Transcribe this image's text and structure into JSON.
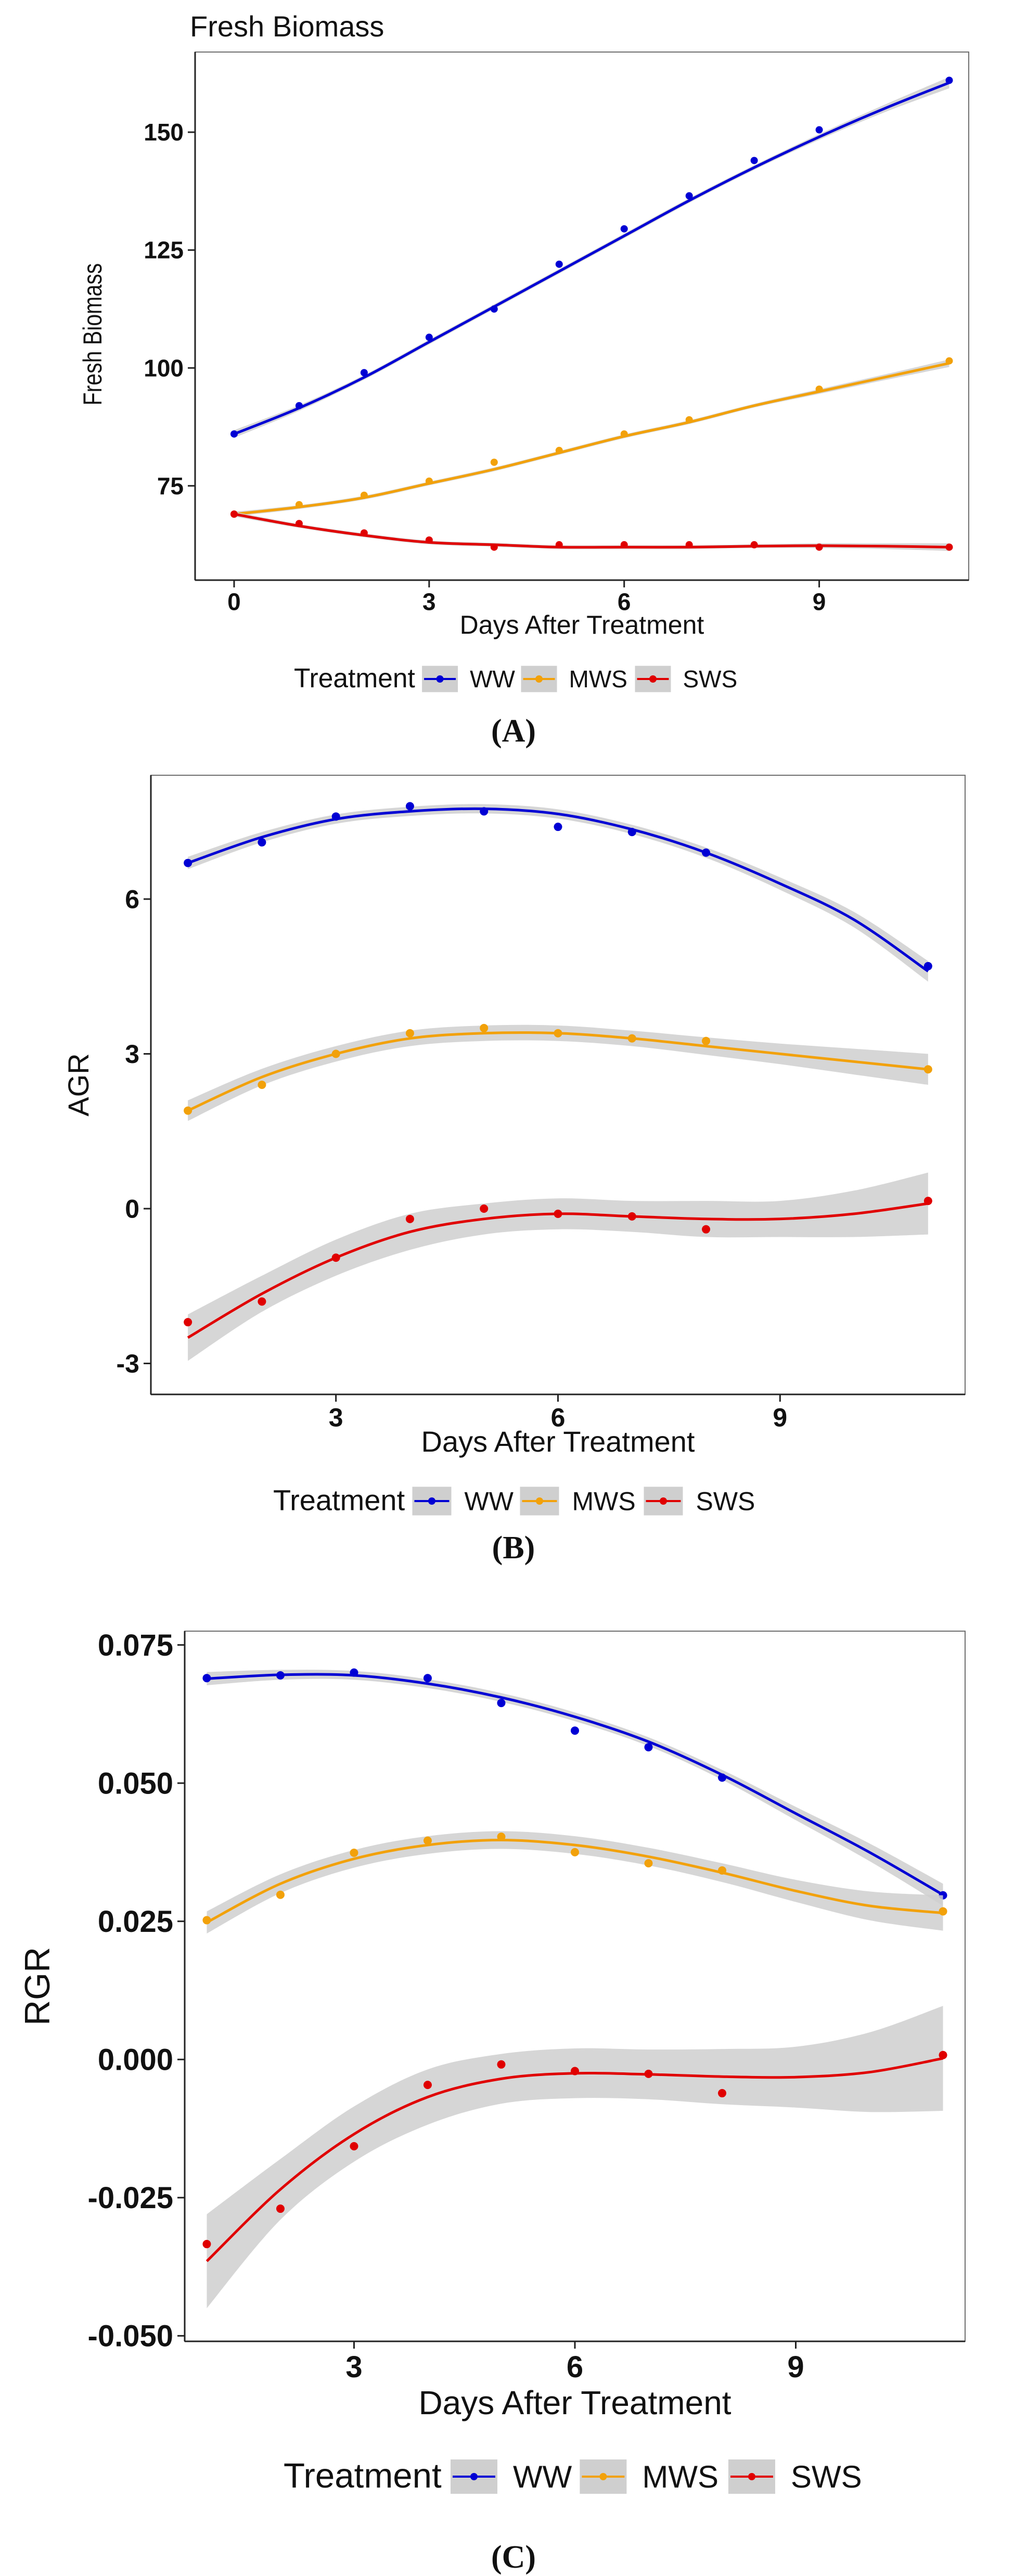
{
  "panel_labels": [
    "(A)",
    "(B)",
    "(C)"
  ],
  "colors": {
    "WW": "#0000d4",
    "MWS": "#f2a10a",
    "SWS": "#e00000",
    "band": "#cfcfcf"
  },
  "chart_data": [
    {
      "type": "line",
      "title": "Fresh Biomass",
      "xlabel": "Days After Treatment",
      "ylabel": "Fresh Biomass",
      "xlim": [
        -0.6,
        11.3
      ],
      "ylim": [
        55,
        167
      ],
      "xticks": [
        0,
        3,
        6,
        9
      ],
      "yticks": [
        75,
        100,
        125,
        150
      ],
      "ytick_labels": [
        "75",
        "100",
        "125",
        "150"
      ],
      "legend": {
        "title": "Treatment",
        "position": "bottom",
        "entries": [
          "WW",
          "MWS",
          "SWS"
        ]
      },
      "x": [
        0,
        1,
        2,
        3,
        4,
        5,
        6,
        7,
        8,
        9,
        10,
        11
      ],
      "series": [
        {
          "name": "WW",
          "points": [
            86,
            92,
            99,
            106.5,
            112.5,
            122,
            129.5,
            136.5,
            144,
            150.5,
            null,
            161
          ],
          "fit": [
            86,
            91.5,
            98,
            105.5,
            113,
            120.5,
            128,
            135.5,
            142.5,
            149,
            155,
            160.5
          ],
          "band": [
            0.8,
            0.6,
            0.5,
            0.5,
            0.5,
            0.5,
            0.5,
            0.5,
            0.5,
            0.6,
            0.8,
            1.2
          ]
        },
        {
          "name": "MWS",
          "points": [
            69,
            71,
            73,
            76,
            80,
            82.5,
            86,
            89,
            null,
            95.5,
            null,
            101.5
          ],
          "fit": [
            69,
            70.5,
            72.5,
            75.5,
            78.5,
            82,
            85.5,
            88.5,
            92,
            95,
            98,
            101
          ],
          "band": [
            0.5,
            0.4,
            0.4,
            0.4,
            0.4,
            0.4,
            0.4,
            0.4,
            0.4,
            0.5,
            0.6,
            0.8
          ]
        },
        {
          "name": "SWS",
          "points": [
            69,
            67,
            65,
            63.5,
            62,
            62.5,
            62.5,
            62.5,
            62.5,
            62,
            null,
            62
          ],
          "fit": [
            69,
            66.5,
            64.5,
            63,
            62.5,
            62,
            62,
            62,
            62.2,
            62.3,
            62.2,
            62
          ],
          "band": [
            0.5,
            0.4,
            0.4,
            0.4,
            0.4,
            0.4,
            0.4,
            0.4,
            0.4,
            0.5,
            0.6,
            0.8
          ]
        }
      ]
    },
    {
      "type": "line",
      "title": "",
      "xlabel": "Days After Treatment",
      "ylabel": "AGR",
      "xlim": [
        0.5,
        11.5
      ],
      "ylim": [
        -3.6,
        8.4
      ],
      "xticks": [
        3,
        6,
        9
      ],
      "yticks": [
        -3,
        0,
        3,
        6
      ],
      "ytick_labels": [
        "-3",
        "0",
        "3",
        "6"
      ],
      "legend": {
        "title": "Treatment",
        "position": "bottom",
        "entries": [
          "WW",
          "MWS",
          "SWS"
        ]
      },
      "x": [
        1,
        2,
        3,
        4,
        5,
        6,
        7,
        8,
        9,
        10,
        11
      ],
      "series": [
        {
          "name": "WW",
          "points": [
            6.7,
            7.1,
            7.6,
            7.8,
            7.7,
            7.4,
            7.3,
            6.9,
            null,
            null,
            4.7
          ],
          "fit": [
            6.7,
            7.2,
            7.55,
            7.7,
            7.75,
            7.65,
            7.35,
            6.9,
            6.3,
            5.6,
            4.6
          ],
          "band": [
            0.12,
            0.1,
            0.09,
            0.09,
            0.09,
            0.09,
            0.09,
            0.1,
            0.12,
            0.15,
            0.2
          ]
        },
        {
          "name": "MWS",
          "points": [
            1.9,
            2.4,
            3.0,
            3.4,
            3.5,
            3.4,
            3.3,
            3.25,
            null,
            null,
            2.7
          ],
          "fit": [
            1.9,
            2.55,
            3.0,
            3.3,
            3.4,
            3.4,
            3.3,
            3.15,
            3.0,
            2.85,
            2.7
          ],
          "band": [
            0.2,
            0.16,
            0.15,
            0.15,
            0.15,
            0.15,
            0.15,
            0.17,
            0.2,
            0.25,
            0.3
          ]
        },
        {
          "name": "SWS",
          "points": [
            -2.2,
            -1.8,
            -0.95,
            -0.2,
            0,
            -0.1,
            -0.15,
            -0.4,
            null,
            null,
            0.15
          ],
          "fit": [
            -2.5,
            -1.65,
            -0.95,
            -0.45,
            -0.2,
            -0.1,
            -0.15,
            -0.2,
            -0.2,
            -0.1,
            0.1
          ],
          "band": [
            0.45,
            0.35,
            0.35,
            0.35,
            0.3,
            0.3,
            0.3,
            0.35,
            0.35,
            0.45,
            0.6
          ]
        }
      ]
    },
    {
      "type": "line",
      "title": "",
      "xlabel": "Days After Treatment",
      "ylabel": "RGR",
      "xlim": [
        0.7,
        11.3
      ],
      "ylim": [
        -0.051,
        0.0775
      ],
      "xticks": [
        3,
        6,
        9
      ],
      "yticks": [
        -0.05,
        -0.025,
        0,
        0.025,
        0.05,
        0.075
      ],
      "ytick_labels": [
        "-0.050",
        "-0.025",
        "0.000",
        "0.025",
        "0.050",
        "0.075"
      ],
      "legend": {
        "title": "Treatment",
        "position": "bottom",
        "entries": [
          "WW",
          "MWS",
          "SWS"
        ]
      },
      "x": [
        1,
        2,
        3,
        4,
        5,
        6,
        7,
        8,
        9,
        10,
        11
      ],
      "series": [
        {
          "name": "WW",
          "points": [
            0.069,
            0.0695,
            0.07,
            0.069,
            0.0645,
            0.0595,
            0.0565,
            0.051,
            null,
            null,
            0.0297
          ],
          "fit": [
            0.0689,
            0.0696,
            0.0695,
            0.068,
            0.0655,
            0.062,
            0.0575,
            0.0515,
            0.0445,
            0.0375,
            0.0298
          ],
          "band": [
            0.0012,
            0.0009,
            0.0008,
            0.0008,
            0.0008,
            0.0008,
            0.0008,
            0.0009,
            0.0012,
            0.0016,
            0.002
          ]
        },
        {
          "name": "MWS",
          "points": [
            0.0252,
            0.0298,
            0.0374,
            0.0396,
            0.0403,
            0.0375,
            0.0355,
            0.0342,
            null,
            null,
            0.0268
          ],
          "fit": [
            0.0248,
            0.0318,
            0.0363,
            0.0388,
            0.0397,
            0.0388,
            0.0367,
            0.0338,
            0.0305,
            0.0278,
            0.0265
          ],
          "band": [
            0.002,
            0.0017,
            0.0016,
            0.0016,
            0.0016,
            0.0016,
            0.0016,
            0.0017,
            0.002,
            0.0026,
            0.0032
          ]
        },
        {
          "name": "SWS",
          "points": [
            -0.0334,
            -0.027,
            -0.0157,
            -0.0046,
            -0.0009,
            -0.0021,
            -0.0026,
            -0.0061,
            null,
            null,
            0.0008
          ],
          "fit": [
            -0.0365,
            -0.0235,
            -0.0135,
            -0.0068,
            -0.0035,
            -0.0025,
            -0.0027,
            -0.0031,
            -0.0032,
            -0.0023,
            0.0002
          ],
          "band": [
            0.0085,
            0.0055,
            0.005,
            0.005,
            0.0045,
            0.0045,
            0.0045,
            0.005,
            0.0055,
            0.0072,
            0.0095
          ]
        }
      ]
    }
  ]
}
